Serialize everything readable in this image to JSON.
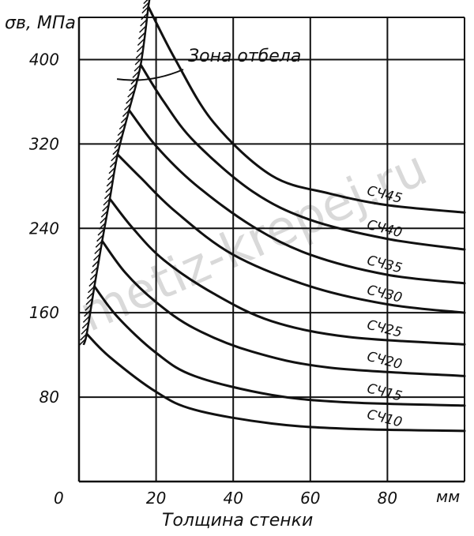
{
  "chart_data": {
    "type": "line",
    "ylabel": "σв, МПа",
    "xlabel": "Толщина стенки",
    "xunit": "мм",
    "origin_label": "0",
    "xlim": [
      0,
      100
    ],
    "ylim": [
      0,
      440
    ],
    "x_ticks": [
      20,
      40,
      60,
      80
    ],
    "y_ticks": [
      80,
      160,
      240,
      320,
      400
    ],
    "annotation": "Зона отбела",
    "watermark": "metiz-krepej.ru",
    "series": [
      {
        "name": "СЧ45",
        "x": [
          18,
          25,
          35,
          50,
          65,
          80,
          100
        ],
        "y": [
          450,
          400,
          340,
          290,
          273,
          262,
          255
        ]
      },
      {
        "name": "СЧ40",
        "x": [
          16,
          22,
          30,
          45,
          60,
          80,
          100
        ],
        "y": [
          395,
          360,
          322,
          275,
          248,
          230,
          220
        ]
      },
      {
        "name": "СЧ35",
        "x": [
          13,
          20,
          30,
          45,
          60,
          80,
          100
        ],
        "y": [
          352,
          318,
          282,
          242,
          215,
          196,
          188
        ]
      },
      {
        "name": "СЧ30",
        "x": [
          10,
          16,
          25,
          40,
          60,
          80,
          100
        ],
        "y": [
          310,
          288,
          256,
          215,
          185,
          168,
          160
        ]
      },
      {
        "name": "СЧ25",
        "x": [
          8,
          14,
          22,
          35,
          50,
          70,
          100
        ],
        "y": [
          268,
          240,
          210,
          178,
          152,
          137,
          130
        ]
      },
      {
        "name": "СЧ20",
        "x": [
          6,
          12,
          20,
          30,
          45,
          65,
          100
        ],
        "y": [
          228,
          198,
          170,
          145,
          123,
          108,
          100
        ]
      },
      {
        "name": "СЧ15",
        "x": [
          4,
          10,
          20,
          30,
          50,
          70,
          100
        ],
        "y": [
          185,
          156,
          122,
          100,
          82,
          75,
          72
        ]
      },
      {
        "name": "СЧ10",
        "x": [
          2,
          8,
          20,
          30,
          50,
          70,
          100
        ],
        "y": [
          140,
          118,
          85,
          68,
          55,
          50,
          48
        ]
      }
    ],
    "grid": true
  }
}
